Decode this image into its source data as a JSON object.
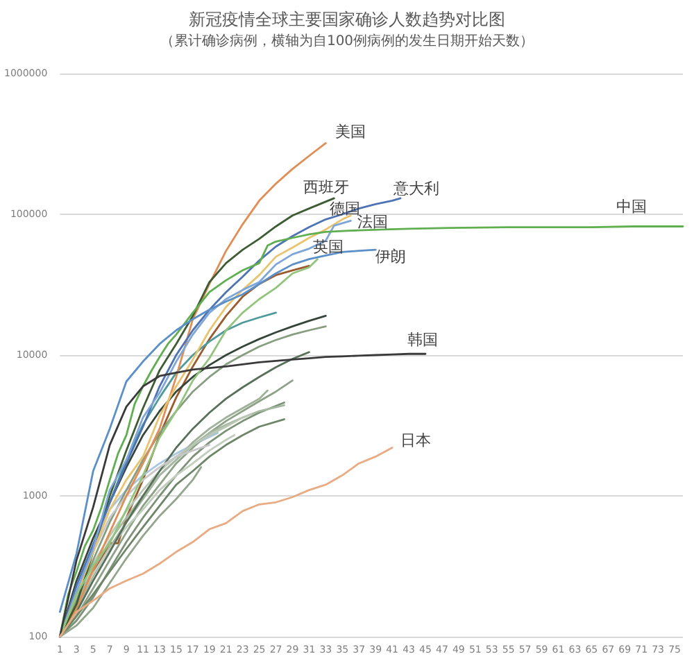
{
  "chart_data": {
    "type": "line",
    "title": "新冠疫情全球主要国家确诊人数趋势对比图",
    "subtitle": "（累计确诊病例，横轴为自100例病例的发生日期开始天数）",
    "xlim": [
      1,
      76
    ],
    "xticks": [
      1,
      3,
      5,
      7,
      9,
      11,
      13,
      15,
      17,
      19,
      21,
      23,
      25,
      27,
      29,
      31,
      33,
      35,
      37,
      39,
      41,
      43,
      45,
      47,
      49,
      51,
      53,
      55,
      57,
      59,
      61,
      63,
      65,
      67,
      69,
      71,
      73,
      75
    ],
    "ylim": [
      100,
      1000000
    ],
    "yticks": [
      100,
      1000,
      10000,
      100000,
      1000000
    ],
    "log": true,
    "grid": "y",
    "series": [
      {
        "color": "#9c5b2e",
        "x": [
          1,
          3,
          5,
          7,
          8,
          9,
          11,
          13,
          15,
          17,
          19,
          21,
          23,
          25,
          27,
          29,
          31
        ],
        "values": [
          100,
          170,
          290,
          460,
          460,
          700,
          1300,
          2700,
          5000,
          8300,
          13000,
          19000,
          26000,
          32000,
          37000,
          40000,
          43000
        ]
      },
      {
        "color": "#36453a",
        "x": [
          1,
          3,
          5,
          7,
          9,
          11,
          13,
          15,
          17,
          19,
          21,
          23,
          25,
          27,
          29,
          31,
          33
        ],
        "values": [
          100,
          250,
          500,
          900,
          1600,
          2700,
          4000,
          5500,
          7000,
          8500,
          10000,
          11500,
          13000,
          14500,
          16000,
          17500,
          19000
        ]
      },
      {
        "color": "#4f9a9a",
        "x": [
          1,
          3,
          5,
          7,
          9,
          11,
          13,
          15,
          17,
          19,
          21,
          23,
          25,
          27
        ],
        "values": [
          100,
          200,
          450,
          900,
          1800,
          3200,
          5000,
          7500,
          10000,
          12500,
          15000,
          17000,
          18500,
          20000
        ]
      },
      {
        "color": "#a9c6e0",
        "x": [
          1,
          3,
          5,
          7,
          9,
          11,
          13,
          15,
          17,
          20
        ],
        "values": [
          100,
          200,
          450,
          800,
          1100,
          1400,
          1700,
          2000,
          2300,
          2800
        ]
      },
      {
        "color": "#8da287",
        "x": [
          1,
          3,
          5,
          7,
          9,
          11,
          13,
          15,
          17,
          19,
          21,
          23,
          25,
          27,
          29
        ],
        "values": [
          100,
          140,
          220,
          350,
          550,
          850,
          1200,
          1700,
          2200,
          2800,
          3400,
          4000,
          4700,
          5500,
          6600
        ]
      },
      {
        "color": "#9fb098",
        "x": [
          1,
          3,
          5,
          7,
          9,
          11,
          13,
          15,
          17,
          19,
          21,
          23,
          25,
          26
        ],
        "values": [
          100,
          160,
          270,
          430,
          650,
          950,
          1400,
          1800,
          2400,
          3000,
          3600,
          4200,
          4900,
          5600
        ]
      },
      {
        "color": "#7c9276",
        "x": [
          1,
          3,
          5,
          7,
          9,
          11,
          13,
          15,
          17,
          19,
          21,
          23,
          25,
          28
        ],
        "values": [
          100,
          130,
          190,
          300,
          470,
          700,
          1000,
          1400,
          1900,
          2400,
          2900,
          3400,
          3900,
          4600
        ]
      },
      {
        "color": "#a7b8a2",
        "x": [
          1,
          3,
          5,
          7,
          9,
          11,
          13,
          15,
          17,
          19,
          21,
          23,
          25,
          28
        ],
        "values": [
          100,
          180,
          300,
          480,
          700,
          1000,
          1400,
          1800,
          2300,
          2800,
          3200,
          3600,
          4000,
          4400
        ]
      },
      {
        "color": "#6e8668",
        "x": [
          1,
          3,
          5,
          7,
          9,
          11,
          13,
          15,
          17,
          19,
          21,
          23,
          25,
          28
        ],
        "values": [
          100,
          140,
          200,
          290,
          420,
          600,
          850,
          1200,
          1500,
          1900,
          2300,
          2700,
          3100,
          3500
        ]
      },
      {
        "color": "#b9c7b4",
        "x": [
          1,
          3,
          5,
          7,
          9,
          11,
          13,
          15,
          17,
          19,
          21,
          23,
          24
        ],
        "values": [
          100,
          190,
          330,
          520,
          780,
          1100,
          1500,
          1900,
          2300,
          2700,
          3100,
          3600,
          3800
        ]
      },
      {
        "color": "#93a68c",
        "x": [
          1,
          3,
          5,
          7,
          9,
          11,
          13,
          15,
          17,
          18
        ],
        "values": [
          100,
          120,
          160,
          240,
          360,
          520,
          720,
          950,
          1300,
          1600
        ]
      },
      {
        "color": "#c2cdbd",
        "x": [
          1,
          3,
          5,
          7,
          9,
          11,
          13,
          15,
          17,
          19,
          21,
          22
        ],
        "values": [
          100,
          170,
          280,
          420,
          600,
          800,
          1100,
          1400,
          1700,
          2100,
          2500,
          2700
        ]
      },
      {
        "color": "#58705a",
        "x": [
          1,
          3,
          5,
          7,
          9,
          11,
          13,
          15,
          17,
          19,
          21,
          23,
          25,
          27,
          29,
          31
        ],
        "values": [
          100,
          150,
          250,
          400,
          650,
          1000,
          1500,
          2200,
          3000,
          3900,
          4900,
          5900,
          7000,
          8200,
          9400,
          10500
        ]
      },
      {
        "color": "#879d80",
        "x": [
          1,
          3,
          5,
          7,
          9,
          11,
          13,
          15,
          17,
          19,
          21,
          23,
          25,
          27,
          29,
          31,
          33
        ],
        "values": [
          100,
          180,
          350,
          650,
          1100,
          1800,
          2800,
          4000,
          5500,
          7000,
          8600,
          10000,
          11500,
          12800,
          14000,
          15000,
          16000
        ]
      },
      {
        "color": "#c8c8c8",
        "x": [
          1,
          3,
          5,
          7,
          9,
          11,
          13,
          15,
          17,
          19
        ],
        "values": [
          100,
          200,
          400,
          700,
          1000,
          1300,
          1600,
          1900,
          2100,
          2300
        ]
      },
      {
        "name": "美国",
        "color": "#e08e55",
        "x": [
          1,
          3,
          5,
          7,
          9,
          11,
          13,
          15,
          17,
          19,
          21,
          23,
          25,
          27,
          29,
          31,
          33
        ],
        "values": [
          100,
          160,
          300,
          550,
          1000,
          1700,
          3000,
          7000,
          18000,
          32000,
          55000,
          85000,
          125000,
          165000,
          210000,
          260000,
          320000
        ]
      },
      {
        "name": "西班牙",
        "color": "#3e5c34",
        "x": [
          1,
          3,
          5,
          7,
          9,
          11,
          13,
          15,
          17,
          19,
          21,
          23,
          25,
          27,
          29,
          31,
          34
        ],
        "values": [
          100,
          170,
          400,
          1000,
          2100,
          4200,
          7800,
          12000,
          19000,
          33000,
          45000,
          56000,
          67000,
          82000,
          98000,
          110000,
          130000
        ]
      },
      {
        "name": "意大利",
        "color": "#4e73b3",
        "x": [
          1,
          3,
          5,
          7,
          9,
          11,
          13,
          15,
          17,
          19,
          21,
          23,
          25,
          27,
          29,
          31,
          33,
          35,
          37,
          39,
          41,
          42
        ],
        "values": [
          100,
          230,
          450,
          890,
          1700,
          3100,
          6000,
          10000,
          15000,
          21000,
          28000,
          36000,
          47000,
          59000,
          70000,
          81000,
          92000,
          100000,
          110000,
          118000,
          125000,
          130000
        ]
      },
      {
        "name": "德国",
        "color": "#e9c46f",
        "x": [
          1,
          3,
          5,
          7,
          9,
          11,
          13,
          15,
          17,
          19,
          21,
          23,
          25,
          27,
          29,
          31,
          33,
          35,
          36
        ],
        "values": [
          100,
          200,
          400,
          800,
          1300,
          1900,
          3700,
          6000,
          9300,
          15000,
          22000,
          29000,
          37000,
          50000,
          58000,
          68000,
          78000,
          92000,
          98000
        ]
      },
      {
        "name": "法国",
        "color": "#7ea6d8",
        "x": [
          1,
          3,
          5,
          7,
          9,
          11,
          13,
          15,
          17,
          19,
          21,
          23,
          25,
          27,
          29,
          31,
          33,
          34,
          36
        ],
        "values": [
          100,
          210,
          420,
          1100,
          1800,
          3600,
          5400,
          9000,
          14000,
          20000,
          25000,
          29000,
          33000,
          44000,
          52000,
          57000,
          65000,
          83000,
          90000
        ]
      },
      {
        "name": "中国",
        "color": "#5fae50",
        "x": [
          1,
          2,
          3,
          4,
          5,
          6,
          7,
          8,
          9,
          10,
          11,
          12,
          13,
          14,
          15,
          17,
          19,
          21,
          23,
          25,
          26,
          27,
          29,
          31,
          33,
          35,
          37,
          40,
          43,
          48,
          55,
          60,
          65,
          70,
          76
        ],
        "values": [
          100,
          200,
          290,
          440,
          570,
          830,
          1300,
          2000,
          2700,
          4500,
          6000,
          7700,
          9700,
          12000,
          14000,
          20000,
          28000,
          34000,
          40000,
          45000,
          60000,
          64000,
          68000,
          72000,
          75000,
          76000,
          77000,
          78000,
          79000,
          80000,
          81000,
          81000,
          81000,
          82000,
          82000
        ]
      },
      {
        "name": "英国",
        "color": "#93c47d",
        "x": [
          1,
          3,
          5,
          7,
          9,
          11,
          13,
          15,
          17,
          19,
          21,
          23,
          25,
          27,
          29,
          31,
          32
        ],
        "values": [
          100,
          200,
          320,
          460,
          800,
          1400,
          2600,
          4000,
          6600,
          9500,
          15000,
          20000,
          25000,
          30000,
          38000,
          42000,
          48000
        ]
      },
      {
        "name": "伊朗",
        "color": "#5b8fc8",
        "x": [
          1,
          3,
          5,
          7,
          9,
          11,
          13,
          15,
          17,
          19,
          21,
          23,
          25,
          27,
          29,
          31,
          33,
          35,
          37,
          39
        ],
        "values": [
          150,
          390,
          1500,
          3000,
          6500,
          9000,
          12000,
          15000,
          18000,
          21000,
          24000,
          27000,
          32000,
          38000,
          44000,
          48000,
          51000,
          54000,
          55000,
          56000
        ]
      },
      {
        "name": "韩国",
        "color": "#3a3a3a",
        "x": [
          1,
          3,
          5,
          7,
          9,
          11,
          13,
          15,
          17,
          19,
          21,
          23,
          25,
          27,
          29,
          31,
          33,
          35,
          37,
          39,
          41,
          43,
          45
        ],
        "values": [
          100,
          350,
          830,
          2300,
          4300,
          6000,
          7100,
          7500,
          7900,
          8100,
          8300,
          8600,
          8900,
          9100,
          9300,
          9500,
          9700,
          9800,
          9900,
          10000,
          10100,
          10200,
          10200
        ]
      },
      {
        "name": "日本",
        "color": "#e9ab84",
        "x": [
          1,
          3,
          5,
          7,
          9,
          11,
          13,
          15,
          17,
          19,
          21,
          23,
          25,
          27,
          29,
          31,
          33,
          35,
          37,
          39,
          41
        ],
        "values": [
          100,
          150,
          180,
          220,
          250,
          280,
          330,
          400,
          470,
          580,
          640,
          780,
          870,
          900,
          980,
          1100,
          1200,
          1400,
          1700,
          1900,
          2200
        ]
      }
    ]
  }
}
